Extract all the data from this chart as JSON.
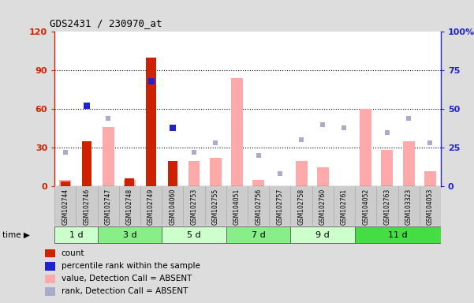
{
  "title": "GDS2431 / 230970_at",
  "samples": [
    "GSM102744",
    "GSM102746",
    "GSM102747",
    "GSM102748",
    "GSM102749",
    "GSM104060",
    "GSM102753",
    "GSM102755",
    "GSM104051",
    "GSM102756",
    "GSM102757",
    "GSM102758",
    "GSM102760",
    "GSM102761",
    "GSM104052",
    "GSM102763",
    "GSM103323",
    "GSM104053"
  ],
  "time_groups": [
    {
      "label": "1 d",
      "start": 0,
      "end": 1,
      "color": "#ccffcc"
    },
    {
      "label": "3 d",
      "start": 2,
      "end": 4,
      "color": "#88ee88"
    },
    {
      "label": "5 d",
      "start": 5,
      "end": 7,
      "color": "#ccffcc"
    },
    {
      "label": "7 d",
      "start": 8,
      "end": 10,
      "color": "#88ee88"
    },
    {
      "label": "9 d",
      "start": 11,
      "end": 13,
      "color": "#ccffcc"
    },
    {
      "label": "11 d",
      "start": 14,
      "end": 17,
      "color": "#44dd44"
    }
  ],
  "count": [
    4,
    35,
    0,
    6,
    100,
    20,
    0,
    0,
    0,
    0,
    0,
    0,
    0,
    0,
    0,
    0,
    0,
    0
  ],
  "percentile_rank": [
    null,
    52,
    null,
    null,
    68,
    38,
    null,
    null,
    null,
    null,
    null,
    null,
    null,
    null,
    null,
    null,
    null,
    null
  ],
  "value_absent": [
    5,
    null,
    46,
    5,
    null,
    null,
    20,
    22,
    84,
    5,
    null,
    20,
    15,
    null,
    60,
    28,
    35,
    12
  ],
  "rank_absent": [
    22,
    null,
    44,
    null,
    null,
    null,
    22,
    28,
    null,
    20,
    8,
    30,
    40,
    38,
    null,
    35,
    44,
    28
  ],
  "ylim_left": [
    0,
    120
  ],
  "ylim_right": [
    0,
    100
  ],
  "yticks_left": [
    0,
    30,
    60,
    90,
    120
  ],
  "ytick_labels_left": [
    "0",
    "30",
    "60",
    "90",
    "120"
  ],
  "yticks_right": [
    0,
    25,
    50,
    75,
    100
  ],
  "ytick_labels_right": [
    "0",
    "25",
    "50",
    "75",
    "100%"
  ],
  "left_axis_color": "#cc2200",
  "right_axis_color": "#2222cc",
  "pink_bar_color": "#ffaaaa",
  "blue_sq_color": "#2222cc",
  "blue_light_color": "#aaaacc",
  "red_bar_color": "#cc2200",
  "fig_bg": "#dddddd",
  "plot_bg": "#ffffff",
  "sample_band_bg": "#cccccc"
}
